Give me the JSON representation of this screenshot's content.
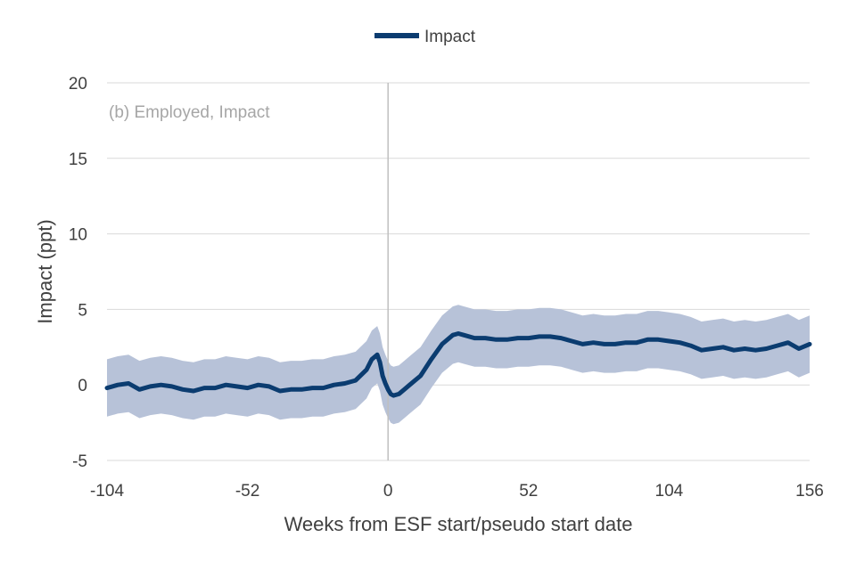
{
  "chart_data": {
    "type": "line",
    "title": "",
    "panel_label": "(b) Employed, Impact",
    "xlabel": "Weeks from ESF start/pseudo start date",
    "ylabel": "Impact (ppt)",
    "xlim": [
      -104,
      156
    ],
    "ylim": [
      -5,
      20
    ],
    "x_ticks": [
      -104,
      -52,
      0,
      52,
      104,
      156
    ],
    "y_ticks": [
      -5,
      0,
      5,
      10,
      15,
      20
    ],
    "grid": "horizontal",
    "legend": {
      "position": "top-center",
      "entries": [
        "Impact"
      ]
    },
    "vertical_reference_line": 0,
    "series": [
      {
        "name": "Impact",
        "color": "#0b3c70",
        "band_color": "#b7c2d8",
        "band_halfwidth_approx": 1.9,
        "x": [
          -104,
          -100,
          -96,
          -92,
          -88,
          -84,
          -80,
          -76,
          -72,
          -68,
          -64,
          -60,
          -56,
          -52,
          -48,
          -44,
          -40,
          -36,
          -32,
          -28,
          -24,
          -20,
          -16,
          -12,
          -8,
          -6,
          -4,
          -3,
          -2,
          -1,
          0,
          1,
          2,
          4,
          6,
          8,
          10,
          12,
          16,
          20,
          24,
          26,
          28,
          32,
          36,
          40,
          44,
          48,
          52,
          56,
          60,
          64,
          68,
          72,
          76,
          80,
          84,
          88,
          92,
          96,
          100,
          104,
          108,
          112,
          116,
          120,
          124,
          128,
          132,
          136,
          140,
          144,
          148,
          152,
          156
        ],
        "values": [
          -0.2,
          0.0,
          0.1,
          -0.3,
          -0.1,
          0.0,
          -0.1,
          -0.3,
          -0.4,
          -0.2,
          -0.2,
          0.0,
          -0.1,
          -0.2,
          0.0,
          -0.1,
          -0.4,
          -0.3,
          -0.3,
          -0.2,
          -0.2,
          0.0,
          0.1,
          0.3,
          1.0,
          1.7,
          2.0,
          1.5,
          0.6,
          0.1,
          -0.3,
          -0.6,
          -0.7,
          -0.6,
          -0.3,
          0.0,
          0.3,
          0.6,
          1.7,
          2.7,
          3.3,
          3.4,
          3.3,
          3.1,
          3.1,
          3.0,
          3.0,
          3.1,
          3.1,
          3.2,
          3.2,
          3.1,
          2.9,
          2.7,
          2.8,
          2.7,
          2.7,
          2.8,
          2.8,
          3.0,
          3.0,
          2.9,
          2.8,
          2.6,
          2.3,
          2.4,
          2.5,
          2.3,
          2.4,
          2.3,
          2.4,
          2.6,
          2.8,
          2.4,
          2.7
        ]
      }
    ]
  }
}
